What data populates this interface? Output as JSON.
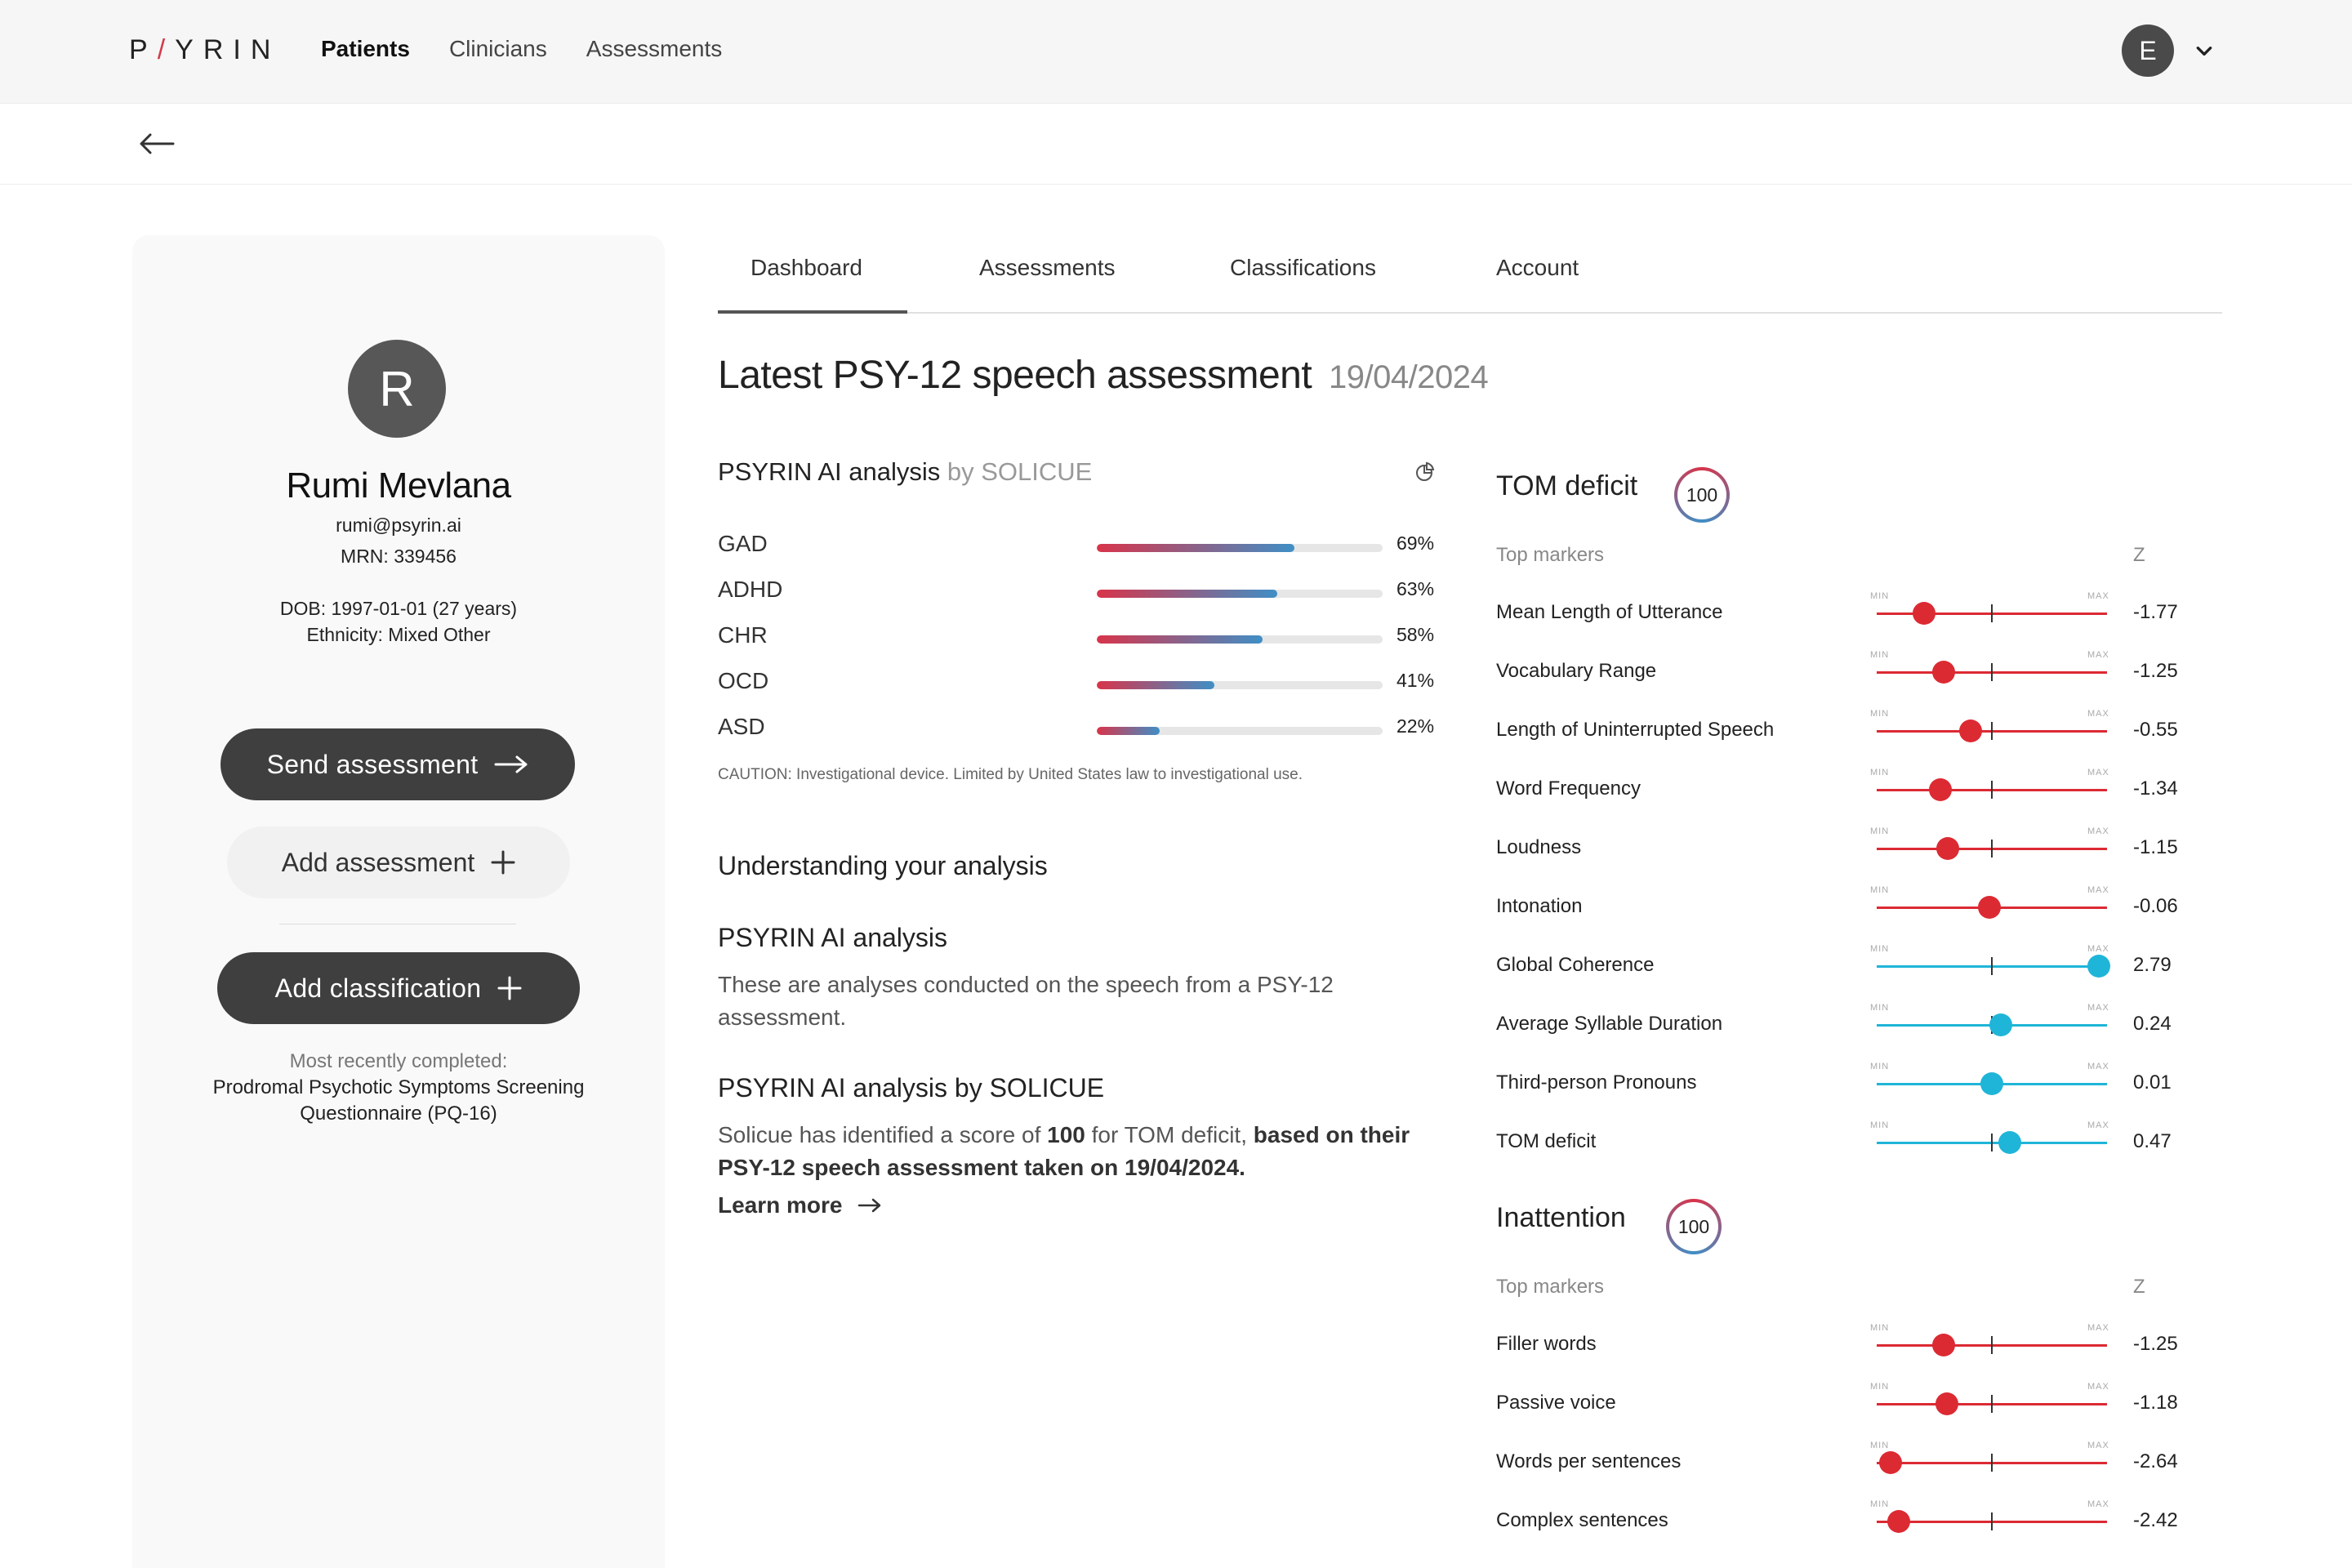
{
  "app": {
    "logo_prefix": "P",
    "logo_slash": "/",
    "logo_suffix": "YRIN",
    "nav": [
      "Patients",
      "Clinicians",
      "Assessments"
    ],
    "user_initial": "E"
  },
  "patient": {
    "initial": "R",
    "name": "Rumi Mevlana",
    "email": "rumi@psyrin.ai",
    "mrn": "MRN: 339456",
    "dob": "DOB: 1997-01-01 (27 years)",
    "ethnicity": "Ethnicity: Mixed Other",
    "recent_label": "Most recently completed:",
    "recent_line1": "Prodromal Psychotic Symptoms Screening",
    "recent_line2": "Questionnaire (PQ-16)"
  },
  "actions": {
    "send": "Send assessment",
    "add_assessment": "Add assessment",
    "add_classification": "Add classification"
  },
  "tabs": [
    "Dashboard",
    "Assessments",
    "Classifications",
    "Account"
  ],
  "heading": {
    "title": "Latest PSY-12 speech assessment",
    "date": "19/04/2024"
  },
  "analysis": {
    "title": "PSYRIN AI analysis",
    "by": "by SOLICUE",
    "rows": [
      {
        "label": "GAD",
        "pct": 69,
        "display": "69%"
      },
      {
        "label": "ADHD",
        "pct": 63,
        "display": "63%"
      },
      {
        "label": "CHR",
        "pct": 58,
        "display": "58%"
      },
      {
        "label": "OCD",
        "pct": 41,
        "display": "41%"
      },
      {
        "label": "ASD",
        "pct": 22,
        "display": "22%"
      }
    ],
    "caution": "CAUTION: Investigational device. Limited by United States law to investigational use."
  },
  "understanding": {
    "title": "Understanding your analysis",
    "sub1_title": "PSYRIN AI analysis",
    "sub1_text": "These are analyses conducted on the speech from a PSY-12 assessment.",
    "sub2_title": "PSYRIN AI analysis",
    "sub2_by": "by SOLICUE",
    "sub2_text_a": "Solicue has identified a score of ",
    "sub2_score": "100",
    "sub2_text_b": " for TOM deficit, ",
    "sub2_text_c": "based on their PSY-12 speech assessment taken on 19/04/2024.",
    "learn_more": "Learn more"
  },
  "marker_scale": {
    "min_label": "MIN",
    "max_label": "MAX",
    "z_min": -3,
    "z_max": 3
  },
  "marker_groups": [
    {
      "title": "TOM deficit",
      "score": "100",
      "top_markers": "Top markers",
      "z_label": "Z",
      "markers": [
        {
          "label": "Mean Length of Utterance",
          "z": -1.77,
          "display": "-1.77"
        },
        {
          "label": "Vocabulary Range",
          "z": -1.25,
          "display": "-1.25"
        },
        {
          "label": "Length of Uninterrupted Speech",
          "z": -0.55,
          "display": "-0.55"
        },
        {
          "label": "Word Frequency",
          "z": -1.34,
          "display": "-1.34"
        },
        {
          "label": "Loudness",
          "z": -1.15,
          "display": "-1.15"
        },
        {
          "label": "Intonation",
          "z": -0.06,
          "display": "-0.06"
        },
        {
          "label": "Global Coherence",
          "z": 2.79,
          "display": "2.79"
        },
        {
          "label": "Average Syllable Duration",
          "z": 0.24,
          "display": "0.24"
        },
        {
          "label": "Third-person Pronouns",
          "z": 0.01,
          "display": "0.01"
        },
        {
          "label": "TOM deficit",
          "z": 0.47,
          "display": "0.47"
        }
      ]
    },
    {
      "title": "Inattention",
      "score": "100",
      "top_markers": "Top markers",
      "z_label": "Z",
      "markers": [
        {
          "label": "Filler words",
          "z": -1.25,
          "display": "-1.25"
        },
        {
          "label": "Passive voice",
          "z": -1.18,
          "display": "-1.18"
        },
        {
          "label": "Words per sentences",
          "z": -2.64,
          "display": "-2.64"
        },
        {
          "label": "Complex sentences",
          "z": -2.42,
          "display": "-2.42"
        }
      ]
    }
  ],
  "colors": {
    "negative": "#dc2a33",
    "positive": "#1fb5d8",
    "dark_button": "#3f3f3f"
  }
}
